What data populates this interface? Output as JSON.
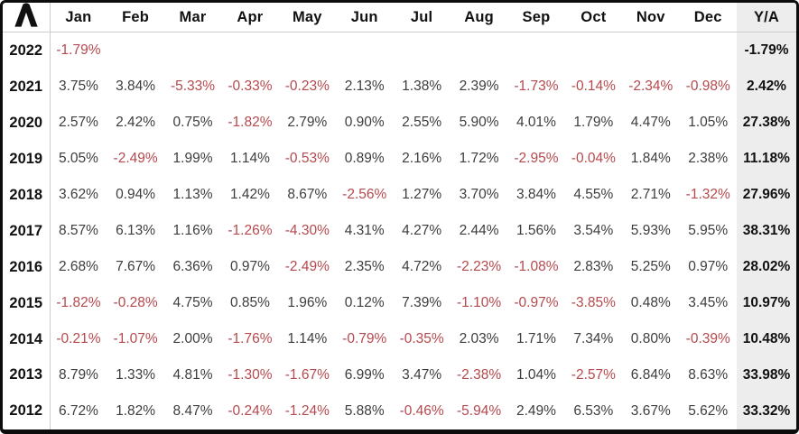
{
  "widget": {
    "type": "monthly-returns-table",
    "logo": {
      "glyph": "caret-logo",
      "color": "#111111"
    }
  },
  "colors": {
    "negative_text": "#b5494d",
    "positive_text": "#3d3d3d",
    "header_text": "#111111",
    "ya_column_bg": "#ededed",
    "grid_line": "#cccccc",
    "frame": "#0c0c0c"
  },
  "table": {
    "month_columns": [
      "Jan",
      "Feb",
      "Mar",
      "Apr",
      "May",
      "Jun",
      "Jul",
      "Aug",
      "Sep",
      "Oct",
      "Nov",
      "Dec"
    ],
    "total_column": "Y/A",
    "rows": [
      {
        "year": "2022",
        "months": [
          "-1.79%",
          "",
          "",
          "",
          "",
          "",
          "",
          "",
          "",
          "",
          "",
          ""
        ],
        "ya": "-1.79%"
      },
      {
        "year": "2021",
        "months": [
          "3.75%",
          "3.84%",
          "-5.33%",
          "-0.33%",
          "-0.23%",
          "2.13%",
          "1.38%",
          "2.39%",
          "-1.73%",
          "-0.14%",
          "-2.34%",
          "-0.98%"
        ],
        "ya": "2.42%"
      },
      {
        "year": "2020",
        "months": [
          "2.57%",
          "2.42%",
          "0.75%",
          "-1.82%",
          "2.79%",
          "0.90%",
          "2.55%",
          "5.90%",
          "4.01%",
          "1.79%",
          "4.47%",
          "1.05%"
        ],
        "ya": "27.38%"
      },
      {
        "year": "2019",
        "months": [
          "5.05%",
          "-2.49%",
          "1.99%",
          "1.14%",
          "-0.53%",
          "0.89%",
          "2.16%",
          "1.72%",
          "-2.95%",
          "-0.04%",
          "1.84%",
          "2.38%"
        ],
        "ya": "11.18%"
      },
      {
        "year": "2018",
        "months": [
          "3.62%",
          "0.94%",
          "1.13%",
          "1.42%",
          "8.67%",
          "-2.56%",
          "1.27%",
          "3.70%",
          "3.84%",
          "4.55%",
          "2.71%",
          "-1.32%"
        ],
        "ya": "27.96%"
      },
      {
        "year": "2017",
        "months": [
          "8.57%",
          "6.13%",
          "1.16%",
          "-1.26%",
          "-4.30%",
          "4.31%",
          "4.27%",
          "2.44%",
          "1.56%",
          "3.54%",
          "5.93%",
          "5.95%"
        ],
        "ya": "38.31%"
      },
      {
        "year": "2016",
        "months": [
          "2.68%",
          "7.67%",
          "6.36%",
          "0.97%",
          "-2.49%",
          "2.35%",
          "4.72%",
          "-2.23%",
          "-1.08%",
          "2.83%",
          "5.25%",
          "0.97%"
        ],
        "ya": "28.02%"
      },
      {
        "year": "2015",
        "months": [
          "-1.82%",
          "-0.28%",
          "4.75%",
          "0.85%",
          "1.96%",
          "0.12%",
          "7.39%",
          "-1.10%",
          "-0.97%",
          "-3.85%",
          "0.48%",
          "3.45%"
        ],
        "ya": "10.97%"
      },
      {
        "year": "2014",
        "months": [
          "-0.21%",
          "-1.07%",
          "2.00%",
          "-1.76%",
          "1.14%",
          "-0.79%",
          "-0.35%",
          "2.03%",
          "1.71%",
          "7.34%",
          "0.80%",
          "-0.39%"
        ],
        "ya": "10.48%"
      },
      {
        "year": "2013",
        "months": [
          "8.79%",
          "1.33%",
          "4.81%",
          "-1.30%",
          "-1.67%",
          "6.99%",
          "3.47%",
          "-2.38%",
          "1.04%",
          "-2.57%",
          "6.84%",
          "8.63%"
        ],
        "ya": "33.98%"
      },
      {
        "year": "2012",
        "months": [
          "6.72%",
          "1.82%",
          "8.47%",
          "-0.24%",
          "-1.24%",
          "5.88%",
          "-0.46%",
          "-5.94%",
          "2.49%",
          "6.53%",
          "3.67%",
          "5.62%"
        ],
        "ya": "33.32%"
      }
    ]
  }
}
